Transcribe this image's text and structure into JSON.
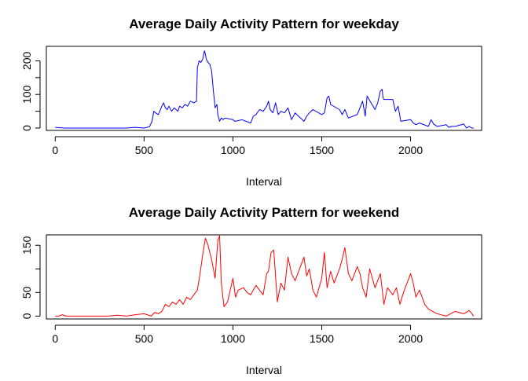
{
  "chart_data": [
    {
      "type": "line",
      "title": "Average Daily Activity Pattern for weekday",
      "xlabel": "Interval",
      "ylabel": "",
      "xlim": [
        -50,
        2400
      ],
      "ylim": [
        -7,
        243
      ],
      "xticks": [
        0,
        500,
        1000,
        1500,
        2000
      ],
      "yticks": [
        0,
        50,
        100,
        150,
        200
      ],
      "ytick_labels": [
        "0",
        "",
        "100",
        "",
        "200"
      ],
      "grid": false,
      "legend": "none",
      "color": "#0000ff",
      "series": [
        {
          "x": [
            0,
            50,
            100,
            150,
            200,
            250,
            300,
            350,
            400,
            450,
            500,
            530,
            545,
            555,
            565,
            580,
            600,
            610,
            620,
            630,
            640,
            655,
            670,
            690,
            700,
            715,
            730,
            745,
            760,
            780,
            795,
            800,
            810,
            820,
            830,
            840,
            845,
            850,
            860,
            870,
            880,
            890,
            900,
            910,
            915,
            925,
            935,
            945,
            955,
            1000,
            1010,
            1030,
            1050,
            1100,
            1115,
            1130,
            1150,
            1170,
            1190,
            1200,
            1210,
            1225,
            1240,
            1255,
            1270,
            1290,
            1310,
            1330,
            1350,
            1400,
            1415,
            1430,
            1450,
            1500,
            1515,
            1530,
            1540,
            1550,
            1600,
            1615,
            1630,
            1650,
            1700,
            1715,
            1730,
            1745,
            1755,
            1800,
            1815,
            1830,
            1840,
            1845,
            1850,
            1900,
            1915,
            1930,
            1945,
            2000,
            2015,
            2030,
            2050,
            2100,
            2115,
            2130,
            2150,
            2200,
            2215,
            2230,
            2250,
            2300,
            2315,
            2330,
            2345,
            2355
          ],
          "y": [
            2,
            0,
            0,
            0,
            0,
            0,
            0,
            0,
            0,
            2,
            0,
            4,
            20,
            50,
            45,
            40,
            65,
            75,
            60,
            55,
            65,
            50,
            60,
            50,
            65,
            60,
            70,
            65,
            80,
            75,
            80,
            180,
            200,
            195,
            205,
            230,
            220,
            205,
            195,
            190,
            170,
            110,
            60,
            70,
            40,
            20,
            30,
            25,
            30,
            25,
            20,
            22,
            25,
            15,
            35,
            40,
            55,
            50,
            65,
            80,
            55,
            45,
            75,
            40,
            50,
            45,
            60,
            25,
            45,
            20,
            35,
            45,
            55,
            40,
            45,
            90,
            95,
            70,
            55,
            40,
            55,
            30,
            40,
            60,
            80,
            35,
            95,
            55,
            75,
            110,
            115,
            90,
            85,
            85,
            50,
            65,
            20,
            25,
            15,
            10,
            15,
            5,
            25,
            12,
            5,
            10,
            2,
            5,
            5,
            12,
            0,
            5,
            0,
            0
          ]
        }
      ]
    },
    {
      "type": "line",
      "title": "Average Daily Activity Pattern for weekend",
      "xlabel": "Interval",
      "ylabel": "",
      "xlim": [
        -50,
        2400
      ],
      "ylim": [
        -6,
        172
      ],
      "xticks": [
        0,
        500,
        1000,
        1500,
        2000
      ],
      "yticks": [
        0,
        50,
        100,
        150
      ],
      "ytick_labels": [
        "0",
        "50",
        "",
        "150"
      ],
      "grid": false,
      "legend": "none",
      "color": "#ff0000",
      "series": [
        {
          "x": [
            0,
            20,
            40,
            60,
            100,
            150,
            200,
            250,
            300,
            350,
            400,
            450,
            500,
            540,
            560,
            580,
            600,
            620,
            640,
            660,
            680,
            700,
            720,
            740,
            760,
            780,
            800,
            815,
            830,
            845,
            860,
            870,
            880,
            890,
            900,
            915,
            925,
            935,
            950,
            970,
            1000,
            1015,
            1030,
            1060,
            1080,
            1100,
            1130,
            1150,
            1170,
            1190,
            1200,
            1215,
            1230,
            1250,
            1270,
            1290,
            1310,
            1330,
            1350,
            1370,
            1400,
            1415,
            1430,
            1450,
            1470,
            1500,
            1515,
            1530,
            1550,
            1570,
            1600,
            1615,
            1630,
            1650,
            1670,
            1700,
            1715,
            1730,
            1750,
            1770,
            1800,
            1815,
            1830,
            1850,
            1870,
            1900,
            1920,
            1940,
            1960,
            2000,
            2015,
            2030,
            2050,
            2080,
            2100,
            2150,
            2180,
            2200,
            2250,
            2300,
            2330,
            2345,
            2355
          ],
          "y": [
            0,
            0,
            3,
            0,
            0,
            0,
            0,
            0,
            0,
            2,
            0,
            3,
            5,
            0,
            8,
            5,
            10,
            25,
            20,
            30,
            25,
            35,
            25,
            40,
            35,
            45,
            55,
            90,
            130,
            165,
            150,
            135,
            120,
            100,
            80,
            160,
            170,
            70,
            20,
            30,
            80,
            40,
            55,
            60,
            50,
            45,
            65,
            55,
            45,
            90,
            95,
            135,
            140,
            30,
            70,
            55,
            125,
            90,
            75,
            95,
            125,
            85,
            100,
            55,
            40,
            80,
            135,
            60,
            95,
            70,
            100,
            120,
            145,
            90,
            75,
            105,
            90,
            60,
            40,
            100,
            60,
            75,
            90,
            25,
            60,
            45,
            60,
            25,
            50,
            90,
            70,
            40,
            55,
            25,
            15,
            5,
            2,
            0,
            10,
            5,
            12,
            5,
            0
          ]
        }
      ]
    }
  ]
}
